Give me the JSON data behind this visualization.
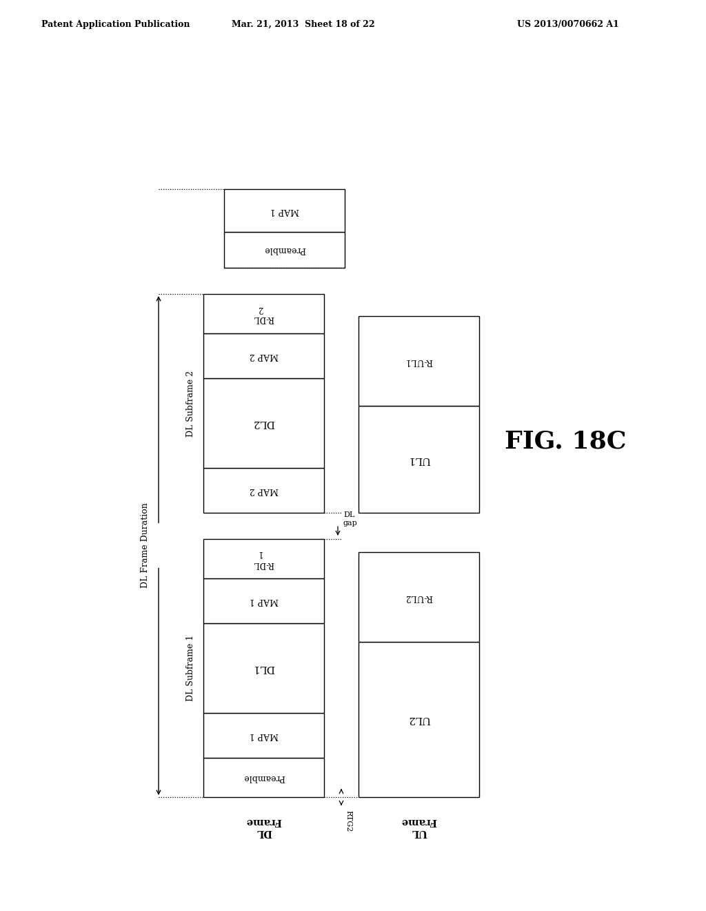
{
  "header_left": "Patent Application Publication",
  "header_mid": "Mar. 21, 2013  Sheet 18 of 22",
  "header_right": "US 2013/0070662 A1",
  "fig_label": "FIG. 18C",
  "background_color": "#ffffff",
  "text_color": "#000000"
}
